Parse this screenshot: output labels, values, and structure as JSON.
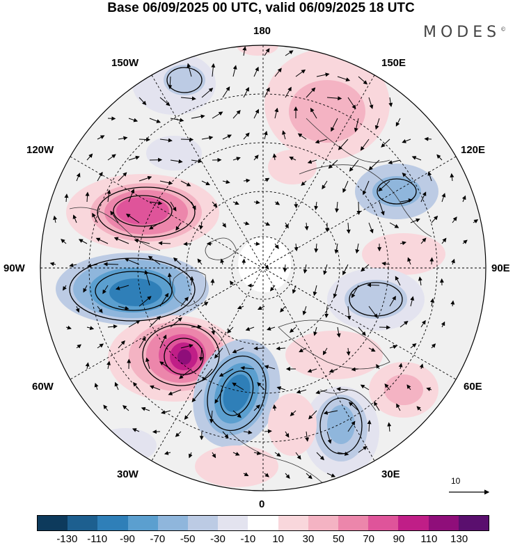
{
  "title": "Base 06/09/2025 00 UTC, valid 06/09/2025 18 UTC",
  "brand": "MODES",
  "brand_mark": "©",
  "longitude_labels": {
    "n180": "180",
    "e150": "150E",
    "e120": "120E",
    "e90": "90E",
    "e60": "60E",
    "e30": "30E",
    "s0": "0",
    "w30": "30W",
    "w60": "60W",
    "w90": "90W",
    "w120": "120W",
    "w150": "150W"
  },
  "reference_vector_label": "10",
  "colorbar": {
    "colors": [
      "#0d3a5c",
      "#1d5f8f",
      "#2f7fb8",
      "#5b9fcf",
      "#8fb6dc",
      "#bccbe4",
      "#e3e3ef",
      "#ffffff",
      "#f9d7dc",
      "#f4b3c3",
      "#ec86ab",
      "#df549a",
      "#c01e87",
      "#8f0e7a",
      "#5a0f6e"
    ],
    "tick_labels": [
      "-130",
      "-110",
      "-90",
      "-70",
      "-50",
      "-30",
      "-10",
      "10",
      "30",
      "50",
      "70",
      "90",
      "110",
      "130"
    ]
  },
  "anomaly_centers": [
    {
      "name": "western-atlantic-high",
      "sign": "positive",
      "peak_value": 110
    },
    {
      "name": "north-america-low",
      "sign": "negative",
      "peak_value": -90
    },
    {
      "name": "greenland-sea-low",
      "sign": "negative",
      "peak_value": -90
    },
    {
      "name": "canada-high",
      "sign": "positive",
      "peak_value": 90
    },
    {
      "name": "scandinavia-low",
      "sign": "negative",
      "peak_value": -50
    },
    {
      "name": "siberia-low",
      "sign": "negative",
      "peak_value": -50
    },
    {
      "name": "east-siberia-low",
      "sign": "negative",
      "peak_value": -50
    },
    {
      "name": "bering-high",
      "sign": "positive",
      "peak_value": 30
    }
  ]
}
